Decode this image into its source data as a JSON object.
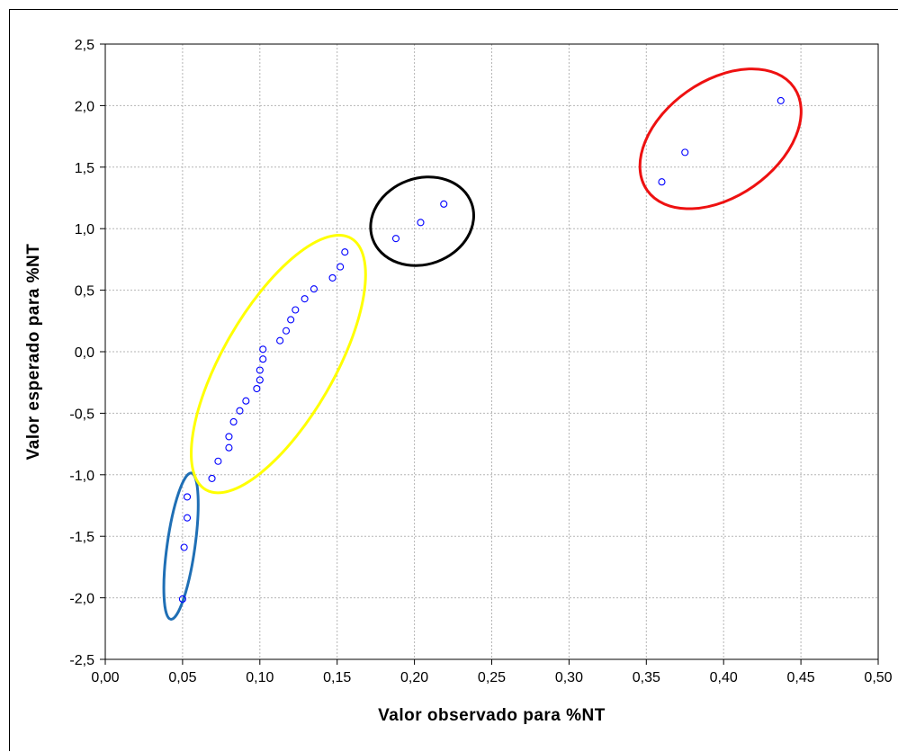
{
  "chart_data": {
    "type": "scatter",
    "title": "",
    "xlabel": "Valor observado para %NT",
    "ylabel": "Valor esperado para %NT",
    "xlim": [
      0.0,
      0.5
    ],
    "ylim": [
      -2.5,
      2.5
    ],
    "grid": true,
    "x_tick_labels": [
      "0,00",
      "0,05",
      "0,10",
      "0,15",
      "0,20",
      "0,25",
      "0,30",
      "0,35",
      "0,40",
      "0,45",
      "0,50"
    ],
    "y_tick_labels": [
      "-2,5",
      "-2,0",
      "-1,5",
      "-1,0",
      "-0,5",
      "0,0",
      "0,5",
      "1,0",
      "1,5",
      "2,0",
      "2,5"
    ],
    "x_ticks": [
      0.0,
      0.05,
      0.1,
      0.15,
      0.2,
      0.25,
      0.3,
      0.35,
      0.4,
      0.45,
      0.5
    ],
    "y_ticks": [
      -2.5,
      -2.0,
      -1.5,
      -1.0,
      -0.5,
      0.0,
      0.5,
      1.0,
      1.5,
      2.0,
      2.5
    ],
    "marker_color": "#0000ff",
    "points": [
      {
        "x": 0.05,
        "y": -2.01
      },
      {
        "x": 0.051,
        "y": -1.59
      },
      {
        "x": 0.053,
        "y": -1.35
      },
      {
        "x": 0.053,
        "y": -1.18
      },
      {
        "x": 0.069,
        "y": -1.03
      },
      {
        "x": 0.073,
        "y": -0.89
      },
      {
        "x": 0.08,
        "y": -0.78
      },
      {
        "x": 0.08,
        "y": -0.69
      },
      {
        "x": 0.083,
        "y": -0.57
      },
      {
        "x": 0.087,
        "y": -0.48
      },
      {
        "x": 0.091,
        "y": -0.4
      },
      {
        "x": 0.098,
        "y": -0.3
      },
      {
        "x": 0.1,
        "y": -0.23
      },
      {
        "x": 0.1,
        "y": -0.15
      },
      {
        "x": 0.102,
        "y": -0.06
      },
      {
        "x": 0.102,
        "y": 0.02
      },
      {
        "x": 0.113,
        "y": 0.09
      },
      {
        "x": 0.117,
        "y": 0.17
      },
      {
        "x": 0.12,
        "y": 0.26
      },
      {
        "x": 0.123,
        "y": 0.34
      },
      {
        "x": 0.129,
        "y": 0.43
      },
      {
        "x": 0.135,
        "y": 0.51
      },
      {
        "x": 0.147,
        "y": 0.6
      },
      {
        "x": 0.152,
        "y": 0.69
      },
      {
        "x": 0.155,
        "y": 0.81
      },
      {
        "x": 0.188,
        "y": 0.92
      },
      {
        "x": 0.204,
        "y": 1.05
      },
      {
        "x": 0.219,
        "y": 1.2
      },
      {
        "x": 0.36,
        "y": 1.38
      },
      {
        "x": 0.375,
        "y": 1.62
      },
      {
        "x": 0.437,
        "y": 2.04
      }
    ],
    "highlight_groups": [
      {
        "color": "#1f6fb5",
        "center": [
          0.049,
          -1.58
        ],
        "semi_axes": [
          0.009,
          0.6
        ],
        "rotation_deg": 8
      },
      {
        "color": "#ffff00",
        "center": [
          0.112,
          -0.1
        ],
        "semi_axes": [
          0.036,
          1.18
        ],
        "rotation_deg": 30
      },
      {
        "color": "#000000",
        "center": [
          0.205,
          1.06
        ],
        "semi_axes": [
          0.034,
          0.35
        ],
        "rotation_deg": -20
      },
      {
        "color": "#ee1111",
        "center": [
          0.398,
          1.73
        ],
        "semi_axes": [
          0.058,
          0.47
        ],
        "rotation_deg": -35
      }
    ]
  }
}
